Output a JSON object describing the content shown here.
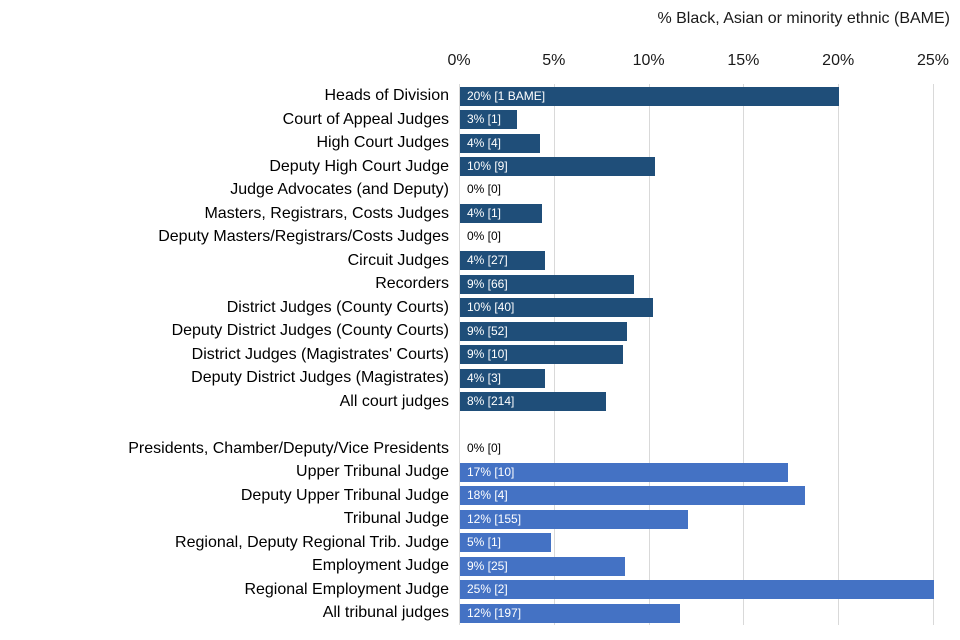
{
  "chart_data": {
    "type": "bar",
    "orientation": "horizontal",
    "title": "% Black, Asian or minority ethnic (BAME)",
    "x_axis": {
      "ticks": [
        "0%",
        "5%",
        "10%",
        "15%",
        "20%",
        "25%"
      ],
      "tick_values": [
        0,
        5,
        10,
        15,
        20,
        25
      ],
      "min": 0,
      "max": 25.2,
      "gridlines": true,
      "position": "top"
    },
    "legend": "none",
    "section_gap_rows": 1,
    "colors": {
      "court_bar": "#1F4E79",
      "tribunal_bar": "#4472C4",
      "gridline": "#d9d9d9",
      "bar_label_text": "#ffffff",
      "zero_label_text": "#000000"
    },
    "groups": [
      {
        "name": "court-judges",
        "color": "#1F4E79",
        "rows": [
          {
            "category": "Heads of Division",
            "bar_label": "20% [1 BAME]",
            "percent": 20,
            "count": 1,
            "bar_length_pct": 20.0
          },
          {
            "category": "Court of Appeal Judges",
            "bar_label": "3% [1]",
            "percent": 3,
            "count": 1,
            "bar_length_pct": 3.0
          },
          {
            "category": "High Court Judges",
            "bar_label": "4% [4]",
            "percent": 4,
            "count": 4,
            "bar_length_pct": 4.2
          },
          {
            "category": "Deputy High Court Judge",
            "bar_label": "10% [9]",
            "percent": 10,
            "count": 9,
            "bar_length_pct": 10.3
          },
          {
            "category": "Judge Advocates (and Deputy)",
            "bar_label": "0% [0]",
            "percent": 0,
            "count": 0,
            "bar_length_pct": 0
          },
          {
            "category": "Masters, Registrars, Costs Judges",
            "bar_label": "4% [1]",
            "percent": 4,
            "count": 1,
            "bar_length_pct": 4.3
          },
          {
            "category": "Deputy Masters/Registrars/Costs Judges",
            "bar_label": "0% [0]",
            "percent": 0,
            "count": 0,
            "bar_length_pct": 0
          },
          {
            "category": "Circuit Judges",
            "bar_label": "4% [27]",
            "percent": 4,
            "count": 27,
            "bar_length_pct": 4.5
          },
          {
            "category": "Recorders",
            "bar_label": "9% [66]",
            "percent": 9,
            "count": 66,
            "bar_length_pct": 9.2
          },
          {
            "category": "District Judges (County Courts)",
            "bar_label": "10% [40]",
            "percent": 10,
            "count": 40,
            "bar_length_pct": 10.2
          },
          {
            "category": "Deputy District Judges (County Courts)",
            "bar_label": "9% [52]",
            "percent": 9,
            "count": 52,
            "bar_length_pct": 8.8
          },
          {
            "category": "District Judges (Magistrates' Courts)",
            "bar_label": "9% [10]",
            "percent": 9,
            "count": 10,
            "bar_length_pct": 8.6
          },
          {
            "category": "Deputy District Judges (Magistrates)",
            "bar_label": "4% [3]",
            "percent": 4,
            "count": 3,
            "bar_length_pct": 4.5
          },
          {
            "category": "All court judges",
            "bar_label": "8% [214]",
            "percent": 8,
            "count": 214,
            "bar_length_pct": 7.7
          }
        ]
      },
      {
        "name": "tribunal-judges",
        "color": "#4472C4",
        "rows": [
          {
            "category": "Presidents, Chamber/Deputy/Vice Presidents",
            "bar_label": "0% [0]",
            "percent": 0,
            "count": 0,
            "bar_length_pct": 0
          },
          {
            "category": "Upper Tribunal Judge",
            "bar_label": "17% [10]",
            "percent": 17,
            "count": 10,
            "bar_length_pct": 17.3
          },
          {
            "category": "Deputy Upper Tribunal Judge",
            "bar_label": "18% [4]",
            "percent": 18,
            "count": 4,
            "bar_length_pct": 18.2
          },
          {
            "category": "Tribunal Judge",
            "bar_label": "12% [155]",
            "percent": 12,
            "count": 155,
            "bar_length_pct": 12.0
          },
          {
            "category": "Regional, Deputy Regional Trib. Judge",
            "bar_label": "5% [1]",
            "percent": 5,
            "count": 1,
            "bar_length_pct": 4.8
          },
          {
            "category": "Employment Judge",
            "bar_label": "9% [25]",
            "percent": 9,
            "count": 25,
            "bar_length_pct": 8.7
          },
          {
            "category": "Regional Employment Judge",
            "bar_label": "25% [2]",
            "percent": 25,
            "count": 2,
            "bar_length_pct": 25.0
          },
          {
            "category": "All tribunal judges",
            "bar_label": "12% [197]",
            "percent": 12,
            "count": 197,
            "bar_length_pct": 11.6
          }
        ]
      }
    ]
  }
}
